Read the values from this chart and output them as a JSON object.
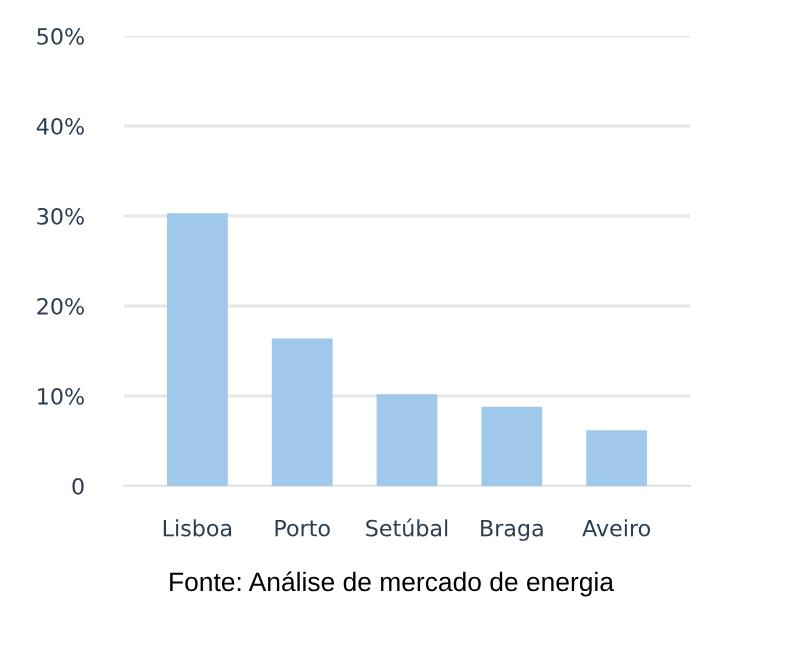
{
  "chart_data": {
    "type": "bar",
    "categories": [
      "Lisboa",
      "Porto",
      "Setúbal",
      "Braga",
      "Aveiro"
    ],
    "values": [
      30.3,
      16.4,
      10.2,
      8.8,
      6.2
    ],
    "color": "#9fc8ea",
    "ylim": [
      0,
      50
    ],
    "yticks": [
      {
        "value": 0,
        "label": "0"
      },
      {
        "value": 10,
        "label": "10%"
      },
      {
        "value": 20,
        "label": "20%"
      },
      {
        "value": 30,
        "label": "30%"
      },
      {
        "value": 40,
        "label": "40%"
      },
      {
        "value": 50,
        "label": "50%"
      }
    ],
    "grid": "y",
    "annotations": [
      "Fonte: Análise de mercado de energia"
    ]
  }
}
